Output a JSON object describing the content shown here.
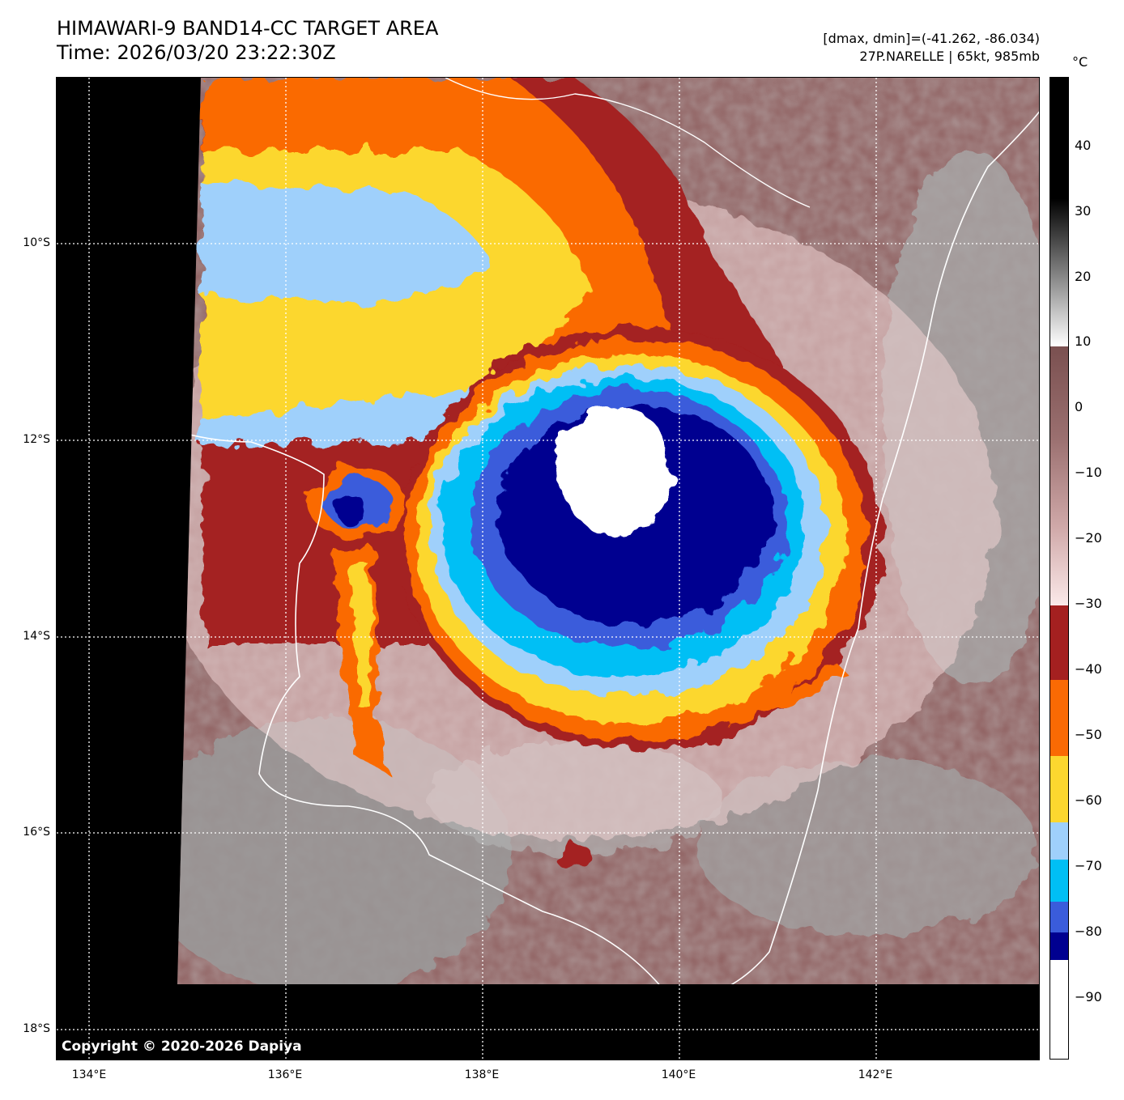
{
  "header": {
    "title_line1": "HIMAWARI-9 BAND14-CC TARGET AREA",
    "title_line2": "Time: 2026/03/20 23:22:30Z",
    "stats_line": "[dmax, dmin]=(-41.262, -86.034)",
    "storm_line": "27P.NARELLE | 65kt, 985mb"
  },
  "map": {
    "copyright": "Copyright © 2020-2026 Dapiya",
    "lat_labels": [
      "10°S",
      "12°S",
      "14°S",
      "16°S",
      "18°S"
    ],
    "lon_labels": [
      "134°E",
      "136°E",
      "138°E",
      "140°E",
      "142°E"
    ]
  },
  "colorbar": {
    "unit": "°C",
    "ticks": [
      "40",
      "30",
      "20",
      "10",
      "0",
      "−10",
      "−20",
      "−30",
      "−40",
      "−50",
      "−60",
      "−70",
      "−80",
      "−90"
    ],
    "colors": {
      "white_core": "#ffffff",
      "navy": "#000090",
      "royal_blue": "#3a5cdb",
      "cyan": "#00bff5",
      "light_blue": "#9fd0fb",
      "yellow": "#fcd72f",
      "orange": "#fa6a04",
      "dark_red": "#a42020",
      "pink": "#f1d4d4",
      "brown": "#8f5f5f",
      "gray": "#9a9a9a"
    }
  }
}
